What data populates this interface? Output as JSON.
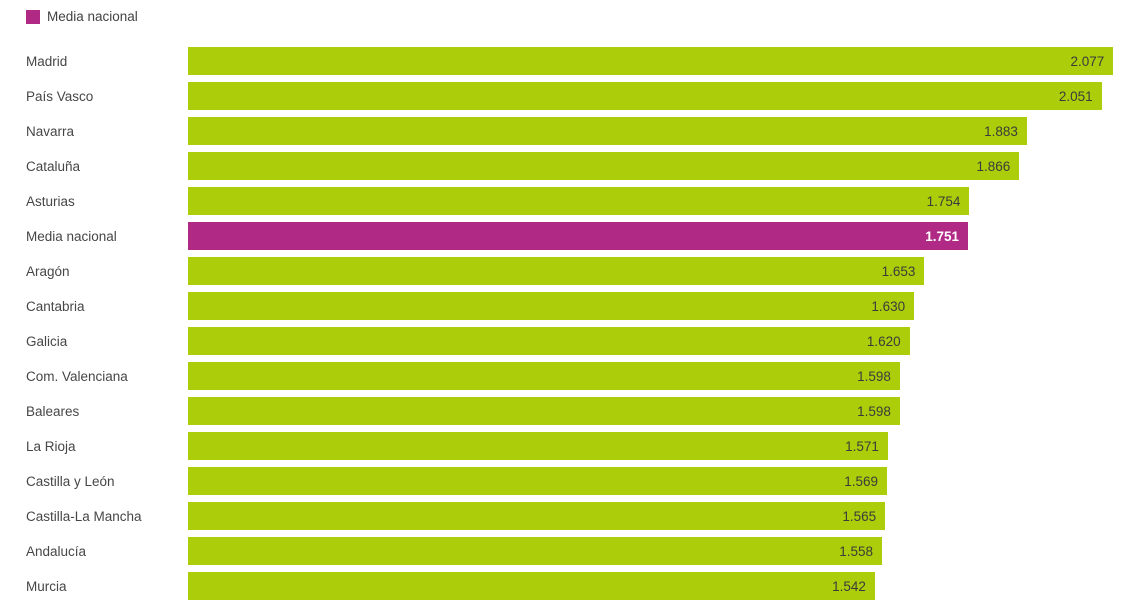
{
  "legend": {
    "label": "Media nacional",
    "swatch_color": "#b02985"
  },
  "chart_data": {
    "type": "bar",
    "orientation": "horizontal",
    "title": "",
    "xlabel": "",
    "ylabel": "",
    "xlim": [
      0,
      2110
    ],
    "grid": false,
    "legend_position": "top-left",
    "legend_entries": [
      "Media nacional"
    ],
    "bar_color": "#abcd0a",
    "highlight_color": "#b02985",
    "highlight_category": "Media nacional",
    "highlight_index": 5,
    "categories": [
      "Madrid",
      "País Vasco",
      "Navarra",
      "Cataluña",
      "Asturias",
      "Media nacional",
      "Aragón",
      "Cantabria",
      "Galicia",
      "Com. Valenciana",
      "Baleares",
      "La Rioja",
      "Castilla y León",
      "Castilla-La Mancha",
      "Andalucía",
      "Murcia"
    ],
    "values": [
      2077,
      2051,
      1883,
      1866,
      1754,
      1751,
      1653,
      1630,
      1620,
      1598,
      1598,
      1571,
      1569,
      1565,
      1558,
      1542
    ],
    "display_values": [
      "2.077",
      "2.051",
      "1.883",
      "1.866",
      "1.754",
      "1.751",
      "1.653",
      "1.630",
      "1.620",
      "1.598",
      "1.598",
      "1.571",
      "1.569",
      "1.565",
      "1.558",
      "1.542"
    ]
  }
}
